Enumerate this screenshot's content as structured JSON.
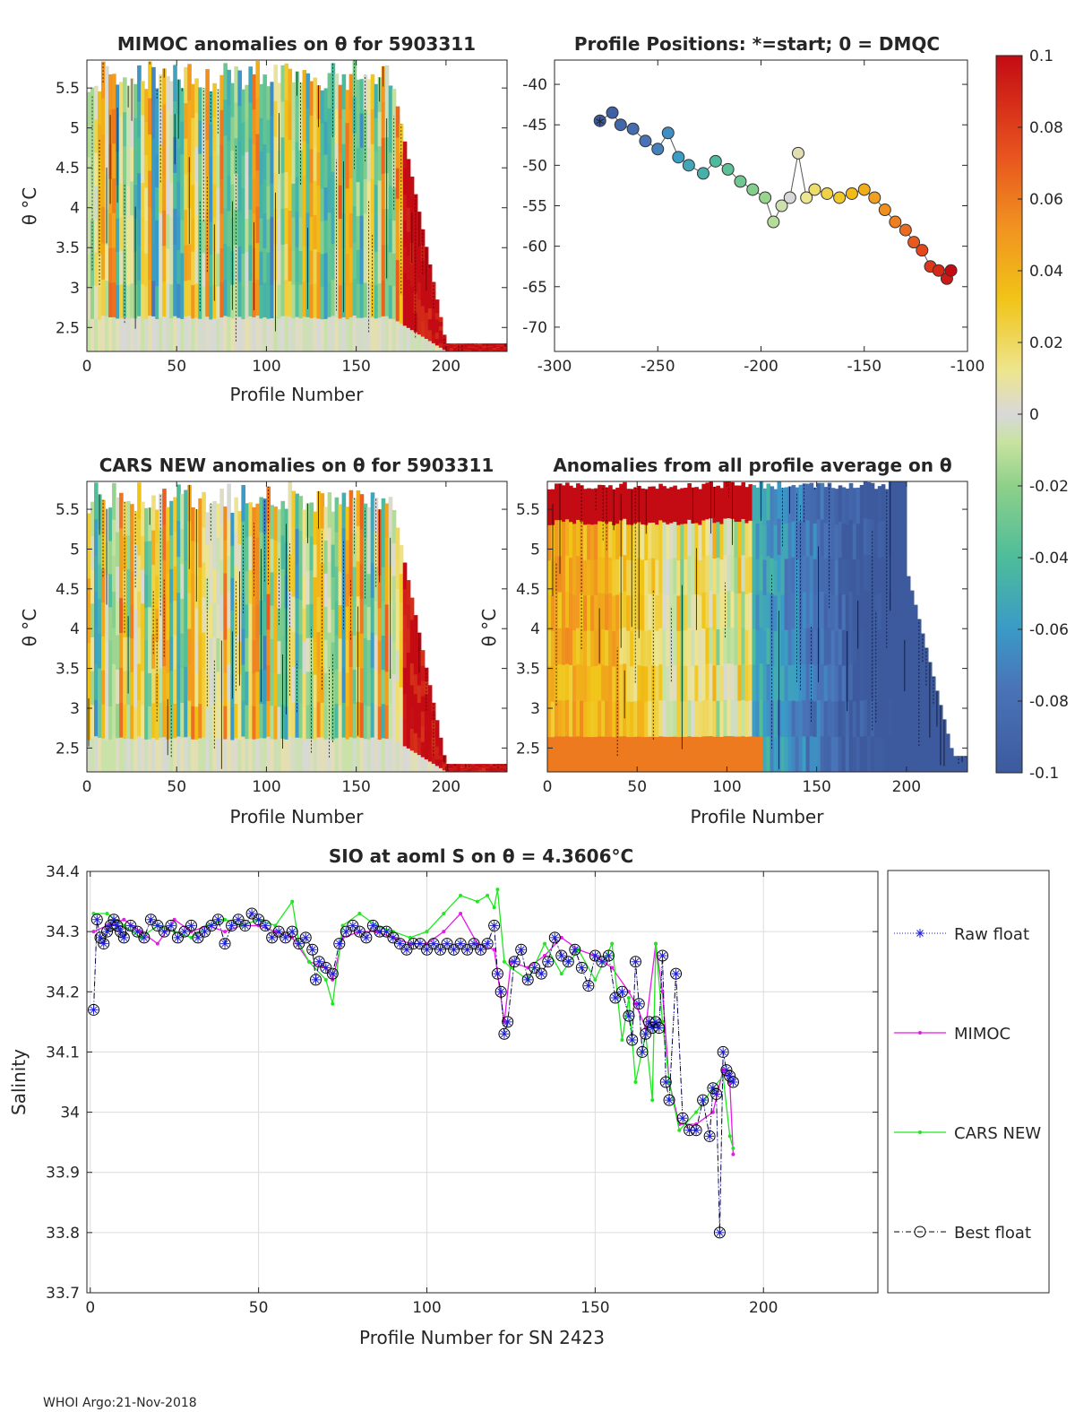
{
  "footer": "WHOI Argo:21-Nov-2018",
  "colors": {
    "raw": "#1f1fd6",
    "mimoc": "#e81ae8",
    "cars": "#22e622",
    "best": "#000000",
    "axis": "#262626",
    "grid": "#dcdcdc"
  },
  "colorbar": {
    "min": -0.1,
    "max": 0.1,
    "ticks": [
      0.1,
      0.08,
      0.06,
      0.04,
      0.02,
      0,
      -0.02,
      -0.04,
      -0.06,
      -0.08,
      -0.1
    ],
    "tick_labels": [
      "0.1",
      "0.08",
      "0.06",
      "0.04",
      "0.02",
      "0",
      "-0.02",
      "-0.04",
      "-0.06",
      "-0.08",
      "-0.1"
    ]
  },
  "chart_data": [
    {
      "id": "mimoc_anom",
      "type": "heatmap",
      "title": "MIMOC anomalies on θ  for 5903311",
      "xlabel": "Profile Number",
      "ylabel": "θ °C",
      "xlim": [
        0,
        234
      ],
      "ylim": [
        2.2,
        5.85
      ],
      "xticks": [
        0,
        50,
        100,
        150,
        200
      ],
      "yticks": [
        2.5,
        3,
        3.5,
        4,
        4.5,
        5,
        5.5
      ]
    },
    {
      "id": "positions",
      "type": "scatter",
      "title": "Profile Positions: *=start; 0 = DMQC",
      "xlim": [
        -300,
        -100
      ],
      "ylim": [
        -73,
        -37
      ],
      "xticks": [
        -300,
        -250,
        -200,
        -150,
        -100
      ],
      "yticks": [
        -40,
        -45,
        -50,
        -55,
        -60,
        -65,
        -70
      ],
      "start": [
        -278,
        -45
      ],
      "track_lon": [
        -278,
        -272,
        -268,
        -262,
        -256,
        -250,
        -245,
        -240,
        -235,
        -228,
        -222,
        -216,
        -210,
        -204,
        -198,
        -194,
        -190,
        -186,
        -182,
        -178,
        -174,
        -168,
        -162,
        -156,
        -150,
        -145,
        -140,
        -135,
        -130,
        -126,
        -122,
        -118,
        -114,
        -110,
        -108
      ],
      "track_lat": [
        -44.5,
        -43.5,
        -45,
        -45.5,
        -47,
        -48,
        -46,
        -49,
        -50,
        -51,
        -49.5,
        -50.5,
        -52,
        -53,
        -54,
        -57,
        -55,
        -54,
        -48.5,
        -54,
        -53,
        -53.5,
        -54,
        -53.5,
        -53,
        -54,
        -55.5,
        -57,
        -58,
        -59.5,
        -60.5,
        -62.5,
        -63,
        -64,
        -63
      ]
    },
    {
      "id": "cars_anom",
      "type": "heatmap",
      "title": "CARS NEW anomalies on θ for 5903311",
      "xlabel": "Profile Number",
      "ylabel": "θ °C",
      "xlim": [
        0,
        234
      ],
      "ylim": [
        2.2,
        5.85
      ],
      "xticks": [
        0,
        50,
        100,
        150,
        200
      ],
      "yticks": [
        2.5,
        3,
        3.5,
        4,
        4.5,
        5,
        5.5
      ]
    },
    {
      "id": "avg_anom",
      "type": "heatmap",
      "title": "Anomalies from all profile average on θ",
      "xlabel": "Profile Number",
      "ylabel": "θ °C",
      "xlim": [
        0,
        234
      ],
      "ylim": [
        2.2,
        5.85
      ],
      "xticks": [
        0,
        50,
        100,
        150,
        200
      ],
      "yticks": [
        2.5,
        3,
        3.5,
        4,
        4.5,
        5,
        5.5
      ]
    },
    {
      "id": "salinity",
      "type": "line",
      "title": "SIO at aoml S on θ = 4.3606°C",
      "xlabel": "Profile Number for SN 2423",
      "ylabel": "Salinity",
      "xlim": [
        -1,
        234
      ],
      "ylim": [
        33.7,
        34.4
      ],
      "xticks": [
        0,
        50,
        100,
        150,
        200
      ],
      "yticks": [
        33.7,
        33.8,
        33.9,
        34,
        34.1,
        34.2,
        34.3,
        34.4
      ],
      "ytick_labels": [
        "33.7",
        "33.8",
        "33.9",
        "34",
        "34.1",
        "34.2",
        "34.3",
        "34.4"
      ],
      "legend": [
        "Raw float",
        "MIMOC",
        "CARS NEW",
        "Best float"
      ],
      "series": [
        {
          "name": "Best float",
          "x": [
            1,
            2,
            3,
            4,
            5,
            6,
            7,
            8,
            9,
            10,
            12,
            14,
            16,
            18,
            20,
            22,
            24,
            26,
            28,
            30,
            32,
            34,
            36,
            38,
            40,
            42,
            44,
            46,
            48,
            50,
            52,
            54,
            56,
            58,
            60,
            62,
            64,
            66,
            67,
            68,
            70,
            72,
            74,
            76,
            78,
            80,
            82,
            84,
            86,
            88,
            90,
            92,
            94,
            96,
            98,
            100,
            102,
            104,
            106,
            108,
            110,
            112,
            114,
            116,
            118,
            120,
            121,
            122,
            123,
            124,
            126,
            128,
            130,
            132,
            134,
            136,
            138,
            140,
            142,
            144,
            146,
            148,
            150,
            152,
            154,
            156,
            158,
            160,
            161,
            162,
            163,
            164,
            165,
            166,
            167,
            168,
            169,
            170,
            171,
            172,
            174,
            176,
            178,
            180,
            182,
            184,
            185,
            186,
            187,
            188,
            189,
            190,
            191
          ],
          "y": [
            34.17,
            34.32,
            34.29,
            34.28,
            34.3,
            34.31,
            34.32,
            34.31,
            34.3,
            34.29,
            34.31,
            34.3,
            34.29,
            34.32,
            34.31,
            34.3,
            34.31,
            34.29,
            34.3,
            34.31,
            34.29,
            34.3,
            34.31,
            34.32,
            34.28,
            34.31,
            34.32,
            34.31,
            34.33,
            34.32,
            34.31,
            34.29,
            34.3,
            34.29,
            34.3,
            34.28,
            34.29,
            34.27,
            34.22,
            34.25,
            34.24,
            34.23,
            34.28,
            34.3,
            34.31,
            34.3,
            34.29,
            34.31,
            34.3,
            34.3,
            34.29,
            34.28,
            34.27,
            34.28,
            34.28,
            34.27,
            34.28,
            34.27,
            34.28,
            34.27,
            34.28,
            34.27,
            34.28,
            34.27,
            34.28,
            34.31,
            34.23,
            34.2,
            34.13,
            34.15,
            34.25,
            34.27,
            34.22,
            34.24,
            34.23,
            34.25,
            34.29,
            34.26,
            34.25,
            34.27,
            34.24,
            34.21,
            34.26,
            34.25,
            34.26,
            34.19,
            34.2,
            34.16,
            34.12,
            34.25,
            34.18,
            34.1,
            34.13,
            34.15,
            34.14,
            34.15,
            34.14,
            34.26,
            34.05,
            34.02,
            34.23,
            33.99,
            33.97,
            33.97,
            34.02,
            33.96,
            34.04,
            34.03,
            33.8,
            34.1,
            34.07,
            34.06,
            34.05
          ]
        },
        {
          "name": "MIMOC",
          "x": [
            1,
            5,
            10,
            15,
            20,
            25,
            30,
            35,
            40,
            45,
            50,
            55,
            60,
            65,
            70,
            72,
            75,
            80,
            85,
            90,
            95,
            100,
            105,
            110,
            115,
            120,
            123,
            125,
            130,
            135,
            140,
            145,
            150,
            155,
            160,
            162,
            165,
            168,
            170,
            172,
            175,
            180,
            185,
            188,
            190,
            191
          ],
          "y": [
            34.3,
            34.31,
            34.32,
            34.3,
            34.28,
            34.32,
            34.3,
            34.31,
            34.3,
            34.31,
            34.31,
            34.3,
            34.29,
            34.25,
            34.24,
            34.22,
            34.29,
            34.3,
            34.3,
            34.29,
            34.28,
            34.28,
            34.3,
            34.33,
            34.28,
            34.27,
            34.15,
            34.25,
            34.24,
            34.26,
            34.29,
            34.27,
            34.26,
            34.24,
            34.2,
            34.18,
            34.14,
            34.28,
            34.2,
            34.05,
            33.98,
            33.98,
            34.0,
            34.07,
            34.05,
            33.93
          ]
        },
        {
          "name": "CARS NEW",
          "x": [
            1,
            5,
            10,
            15,
            20,
            25,
            30,
            35,
            40,
            45,
            50,
            55,
            60,
            62,
            65,
            70,
            72,
            75,
            80,
            85,
            90,
            95,
            100,
            105,
            110,
            115,
            118,
            120,
            121,
            123,
            125,
            130,
            135,
            140,
            145,
            150,
            155,
            158,
            160,
            162,
            165,
            167,
            168,
            170,
            172,
            175,
            180,
            185,
            188,
            190,
            191
          ],
          "y": [
            34.33,
            34.33,
            34.31,
            34.29,
            34.31,
            34.3,
            34.29,
            34.31,
            34.32,
            34.31,
            34.32,
            34.31,
            34.35,
            34.28,
            34.25,
            34.22,
            34.18,
            34.31,
            34.33,
            34.31,
            34.3,
            34.29,
            34.3,
            34.33,
            34.36,
            34.35,
            34.36,
            34.34,
            34.37,
            34.25,
            34.24,
            34.22,
            34.28,
            34.23,
            34.27,
            34.22,
            34.28,
            34.12,
            34.19,
            34.05,
            34.13,
            34.02,
            34.28,
            34.15,
            34.05,
            33.97,
            34.0,
            34.04,
            34.06,
            33.96,
            33.94
          ]
        }
      ]
    }
  ]
}
